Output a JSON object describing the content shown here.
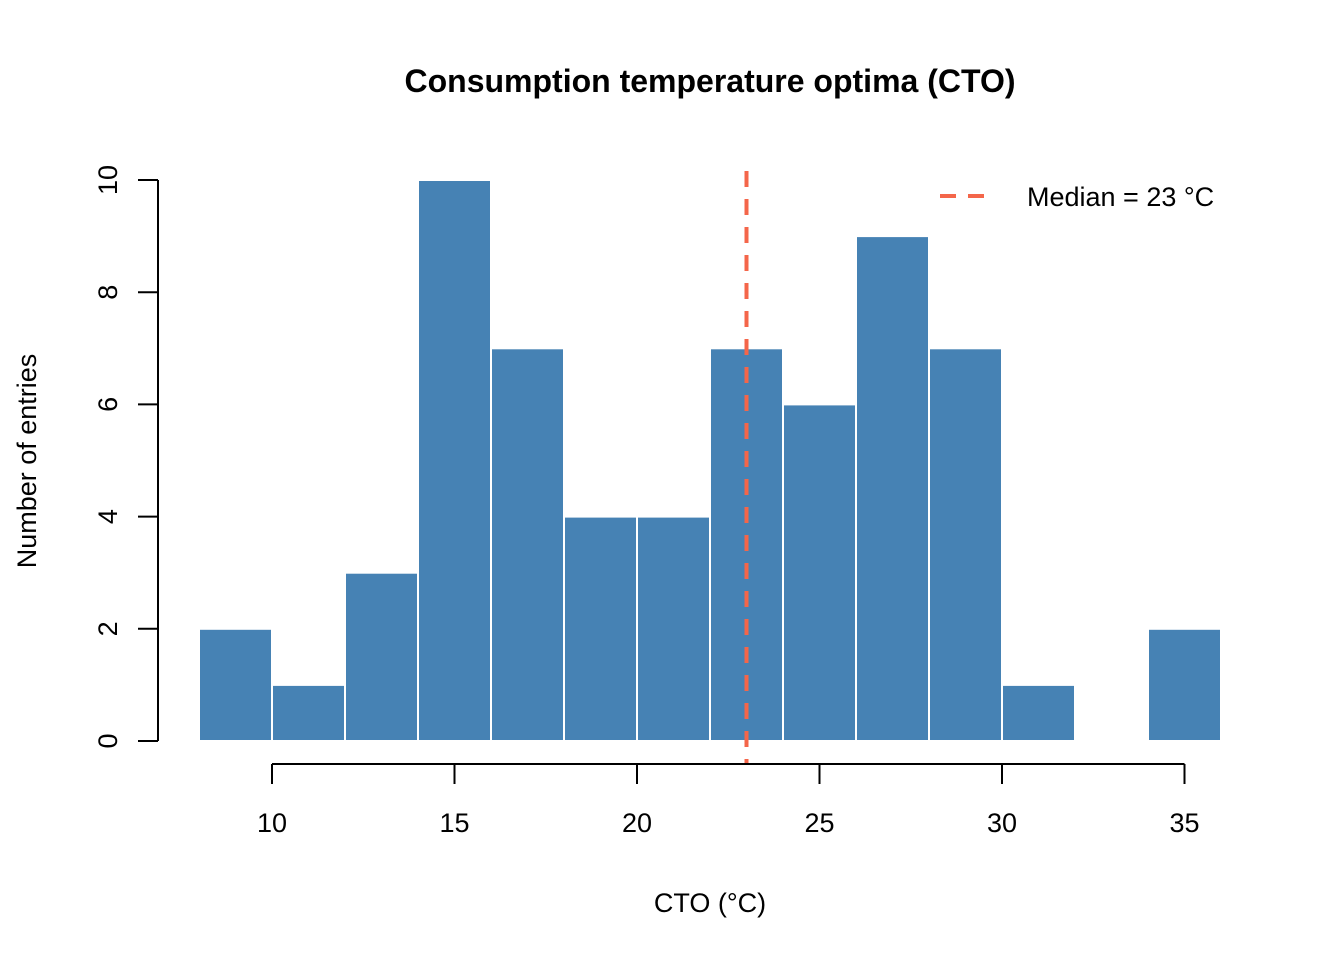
{
  "chart_data": {
    "type": "bar",
    "title": "Consumption temperature optima (CTO)",
    "xlabel": "CTO (°C)",
    "ylabel": "Number of entries",
    "bin_edges": [
      8,
      10,
      12,
      14,
      16,
      18,
      20,
      22,
      24,
      26,
      28,
      30,
      32,
      34,
      36
    ],
    "values": [
      2,
      1,
      3,
      10,
      7,
      4,
      4,
      7,
      6,
      9,
      7,
      1,
      0,
      2
    ],
    "xlim": [
      8,
      36
    ],
    "ylim": [
      0,
      10
    ],
    "x_ticks": [
      10,
      15,
      20,
      25,
      30,
      35
    ],
    "x_tick_labels": [
      "10",
      "15",
      "20",
      "25",
      "30",
      "35"
    ],
    "y_ticks": [
      0,
      2,
      4,
      6,
      8,
      10
    ],
    "y_tick_labels": [
      "0",
      "2",
      "4",
      "6",
      "8",
      "10"
    ],
    "median": 23,
    "legend": {
      "label": "Median = 23 °C",
      "placement": "top-right"
    },
    "grid": false,
    "colors": {
      "bar": "#4682b4",
      "bar_border": "#ffffff",
      "median_line": "#f4664a"
    }
  }
}
